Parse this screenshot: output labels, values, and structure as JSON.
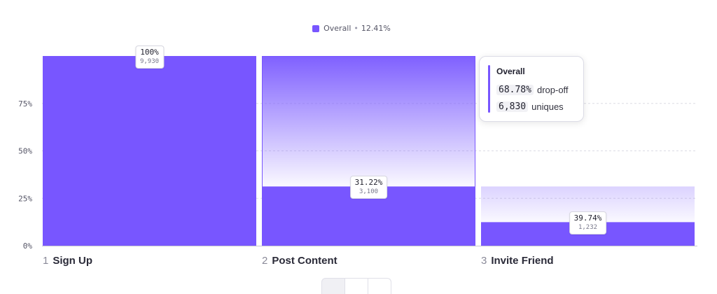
{
  "legend": {
    "name": "Overall",
    "value": "12.41%",
    "separator": "•"
  },
  "colors": {
    "bar": "#7856ff",
    "bar_hover": "#7d5cff",
    "fade_top": "#7f60ff",
    "grid": "#dcdce4",
    "axis_text": "#555566"
  },
  "tooltip": {
    "title": "Overall",
    "dropoff_value": "68.78%",
    "dropoff_label": "drop-off",
    "uniques_value": "6,830",
    "uniques_label": "uniques"
  },
  "chart_data": {
    "type": "bar",
    "categories": [
      "Sign Up",
      "Post Content",
      "Invite Friend"
    ],
    "step_numbers": [
      "1",
      "2",
      "3"
    ],
    "values": [
      100,
      31.22,
      12.41
    ],
    "previous_step_values": [
      100,
      100,
      31.22
    ],
    "pct_labels": [
      "100%",
      "31.22%",
      "39.74%"
    ],
    "counts": [
      "9,930",
      "3,100",
      "1,232"
    ],
    "yticks": [
      0,
      25,
      50,
      75
    ],
    "ytick_labels": [
      "0%",
      "25%",
      "50%",
      "75%"
    ],
    "ylim": [
      0,
      100
    ],
    "legend_placement": "top-center",
    "grid": true,
    "highlighted_index": 1
  }
}
